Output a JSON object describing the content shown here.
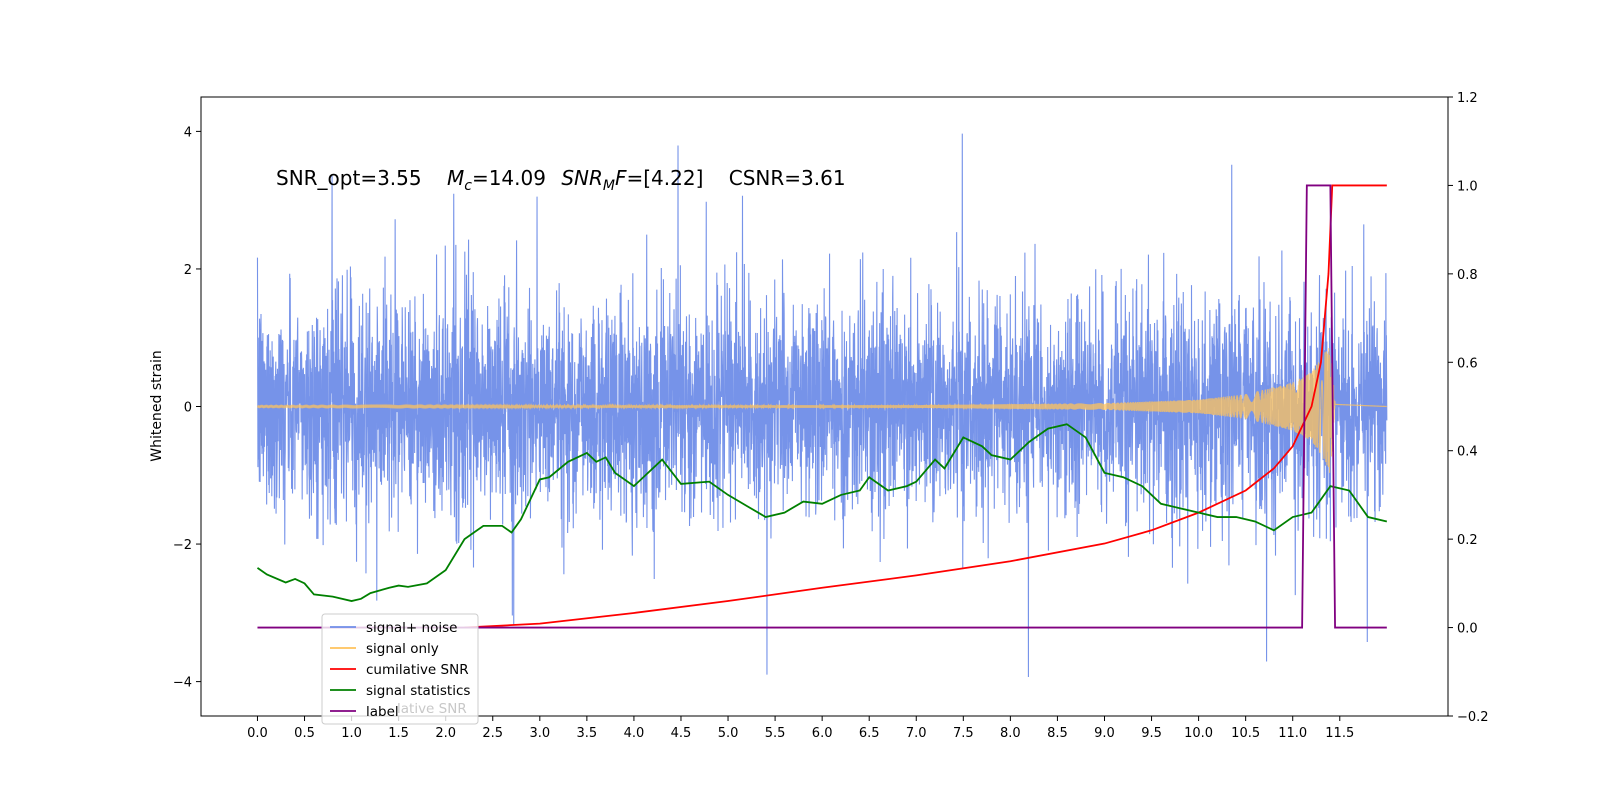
{
  "chart_data": {
    "type": "line",
    "annotation": {
      "snr_opt": "SNR_opt=3.55",
      "mc_symbol": "M",
      "mc_sub": "c",
      "mc_value": "=14.09",
      "snrmf_symbol": "SNR",
      "snrmf_sub": "M",
      "snrmf_f": "F",
      "snrmf_value": "=[4.22]",
      "csnr": "CSNR=3.61"
    },
    "ylabel_left": "Whitened strain",
    "ylabel_right": "",
    "xlabel": "",
    "xlim": [
      -0.6,
      12.65
    ],
    "ylim_left": [
      -4.5,
      4.5
    ],
    "ylim_right": [
      -0.2,
      1.2
    ],
    "x_ticks": [
      "0.0",
      "0.5",
      "1.0",
      "1.5",
      "2.0",
      "2.5",
      "3.0",
      "3.5",
      "4.0",
      "4.5",
      "5.0",
      "5.5",
      "6.0",
      "6.5",
      "7.0",
      "7.5",
      "8.0",
      "8.5",
      "9.0",
      "9.5",
      "10.0",
      "10.5",
      "11.0",
      "11.5"
    ],
    "y_ticks_left": [
      -4,
      -2,
      0,
      2,
      4
    ],
    "y_ticks_right": [
      "−0.2",
      "0.0",
      "0.2",
      "0.4",
      "0.6",
      "0.8",
      "1.0",
      "1.2"
    ],
    "legend": {
      "placement": "lower-left",
      "entries": [
        {
          "label": "signal+ noise",
          "color": "#6f8de8"
        },
        {
          "label": "signal only",
          "color": "#ffc35c"
        },
        {
          "label": "cumilative SNR",
          "color": "#ff0000"
        },
        {
          "label": "signal statistics",
          "color": "#008000"
        },
        {
          "label": "label",
          "color": "#800080"
        }
      ],
      "overlapped_text": "lative SNR"
    },
    "series": [
      {
        "name": "signal+ noise",
        "axis": "left",
        "color": "#6f8de8",
        "description": "whitened noisy strain, amplitude mostly within ±2, spikes to ±4",
        "x_range": [
          0.0,
          12.0
        ],
        "envelope_typical": 1.9,
        "envelope_peak": 4.1
      },
      {
        "name": "signal only",
        "axis": "left",
        "color": "#ffc35c",
        "description": "chirp waveform growing near merger",
        "x_range": [
          0.0,
          12.0
        ],
        "amplitude_points": [
          [
            0,
            0.01
          ],
          [
            7,
            0.02
          ],
          [
            9,
            0.05
          ],
          [
            10,
            0.1
          ],
          [
            10.5,
            0.18
          ],
          [
            11,
            0.35
          ],
          [
            11.2,
            0.5
          ],
          [
            11.35,
            0.8
          ],
          [
            11.4,
            1.0
          ],
          [
            11.45,
            0.05
          ],
          [
            12,
            0.0
          ]
        ]
      },
      {
        "name": "cumilative SNR",
        "axis": "right",
        "color": "#ff0000",
        "points": [
          [
            2.2,
            0.0
          ],
          [
            3.0,
            0.009
          ],
          [
            4.0,
            0.033
          ],
          [
            5.0,
            0.06
          ],
          [
            6.0,
            0.09
          ],
          [
            7.0,
            0.118
          ],
          [
            8.0,
            0.15
          ],
          [
            9.0,
            0.19
          ],
          [
            9.5,
            0.22
          ],
          [
            10.0,
            0.26
          ],
          [
            10.5,
            0.31
          ],
          [
            10.8,
            0.36
          ],
          [
            11.0,
            0.41
          ],
          [
            11.2,
            0.5
          ],
          [
            11.3,
            0.6
          ],
          [
            11.38,
            0.8
          ],
          [
            11.42,
            1.0
          ],
          [
            12.0,
            1.0
          ]
        ]
      },
      {
        "name": "signal statistics",
        "axis": "right",
        "color": "#008000",
        "points": [
          [
            0.0,
            0.135
          ],
          [
            0.1,
            0.12
          ],
          [
            0.3,
            0.102
          ],
          [
            0.4,
            0.11
          ],
          [
            0.5,
            0.1
          ],
          [
            0.6,
            0.075
          ],
          [
            0.8,
            0.07
          ],
          [
            1.0,
            0.06
          ],
          [
            1.1,
            0.065
          ],
          [
            1.2,
            0.078
          ],
          [
            1.4,
            0.09
          ],
          [
            1.5,
            0.095
          ],
          [
            1.6,
            0.092
          ],
          [
            1.8,
            0.1
          ],
          [
            2.0,
            0.13
          ],
          [
            2.2,
            0.2
          ],
          [
            2.3,
            0.215
          ],
          [
            2.4,
            0.23
          ],
          [
            2.6,
            0.23
          ],
          [
            2.7,
            0.215
          ],
          [
            2.8,
            0.245
          ],
          [
            3.0,
            0.335
          ],
          [
            3.1,
            0.34
          ],
          [
            3.3,
            0.375
          ],
          [
            3.5,
            0.395
          ],
          [
            3.6,
            0.375
          ],
          [
            3.7,
            0.385
          ],
          [
            3.8,
            0.35
          ],
          [
            4.0,
            0.32
          ],
          [
            4.1,
            0.34
          ],
          [
            4.3,
            0.38
          ],
          [
            4.5,
            0.325
          ],
          [
            4.8,
            0.33
          ],
          [
            5.0,
            0.3
          ],
          [
            5.2,
            0.275
          ],
          [
            5.4,
            0.25
          ],
          [
            5.6,
            0.26
          ],
          [
            5.8,
            0.285
          ],
          [
            6.0,
            0.28
          ],
          [
            6.2,
            0.3
          ],
          [
            6.4,
            0.31
          ],
          [
            6.5,
            0.34
          ],
          [
            6.7,
            0.31
          ],
          [
            6.9,
            0.32
          ],
          [
            7.0,
            0.33
          ],
          [
            7.2,
            0.38
          ],
          [
            7.3,
            0.36
          ],
          [
            7.5,
            0.43
          ],
          [
            7.7,
            0.41
          ],
          [
            7.8,
            0.39
          ],
          [
            8.0,
            0.38
          ],
          [
            8.2,
            0.42
          ],
          [
            8.4,
            0.45
          ],
          [
            8.6,
            0.46
          ],
          [
            8.8,
            0.43
          ],
          [
            9.0,
            0.35
          ],
          [
            9.2,
            0.34
          ],
          [
            9.4,
            0.32
          ],
          [
            9.6,
            0.28
          ],
          [
            9.8,
            0.27
          ],
          [
            10.0,
            0.26
          ],
          [
            10.2,
            0.25
          ],
          [
            10.4,
            0.25
          ],
          [
            10.6,
            0.24
          ],
          [
            10.8,
            0.22
          ],
          [
            11.0,
            0.25
          ],
          [
            11.2,
            0.26
          ],
          [
            11.4,
            0.32
          ],
          [
            11.6,
            0.31
          ],
          [
            11.8,
            0.25
          ],
          [
            12.0,
            0.24
          ]
        ]
      },
      {
        "name": "label",
        "axis": "right",
        "color": "#800080",
        "points": [
          [
            0.0,
            0.0
          ],
          [
            11.1,
            0.0
          ],
          [
            11.15,
            1.0
          ],
          [
            11.4,
            1.0
          ],
          [
            11.45,
            0.0
          ],
          [
            12.0,
            0.0
          ]
        ]
      }
    ]
  }
}
